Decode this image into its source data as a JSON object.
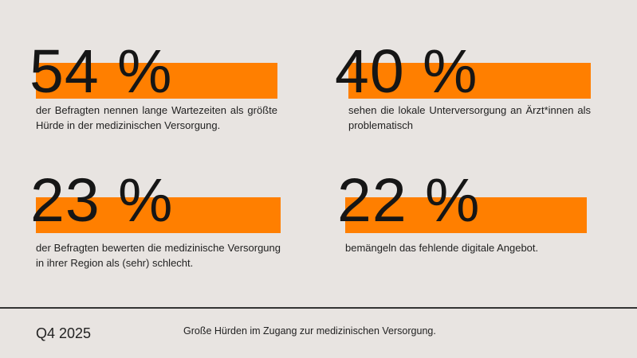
{
  "accent_color": "#ff7f00",
  "stats": [
    {
      "value": "54 %",
      "text": "der Befragten nennen lange Wartezeiten als größte Hürde in der medizinischen Versorgung."
    },
    {
      "value": "40 %",
      "text": "sehen die lokale Unterversorgung an Ärzt*innen als problematisch"
    },
    {
      "value": "23 %",
      "text": "der Befragten bewerten die medizinische Versorgung in ihrer Region als (sehr) schlecht."
    },
    {
      "value": "22 %",
      "text": "bemängeln das fehlende digitale Angebot."
    }
  ],
  "footer": {
    "period": "Q4 2025",
    "caption": "Große Hürden im Zugang zur medizinischen Versorgung."
  }
}
